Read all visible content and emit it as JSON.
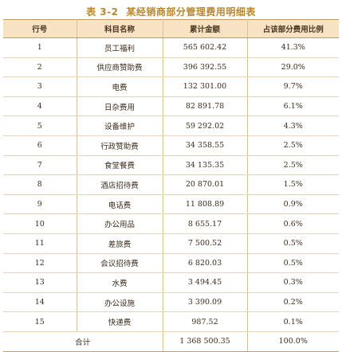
{
  "caption": {
    "number": "表 3-2",
    "title": "某经销商部分管理费用明细表"
  },
  "table": {
    "headers": [
      "行号",
      "科目名称",
      "累计金额",
      "占该部分费用比例"
    ],
    "rows": [
      [
        "1",
        "员工福利",
        "565 602.42",
        "41.3%"
      ],
      [
        "2",
        "供应商赞助费",
        "396 392.55",
        "29.0%"
      ],
      [
        "3",
        "电费",
        "132 301.00",
        "9.7%"
      ],
      [
        "4",
        "日杂费用",
        "82 891.78",
        "6.1%"
      ],
      [
        "5",
        "设备维护",
        "59 292.02",
        "4.3%"
      ],
      [
        "6",
        "行政赞助费",
        "34 358.55",
        "2.5%"
      ],
      [
        "7",
        "食堂餐费",
        "34 135.35",
        "2.5%"
      ],
      [
        "8",
        "酒店招待费",
        "20 870.01",
        "1.5%"
      ],
      [
        "9",
        "电话费",
        "11 808.89",
        "0.9%"
      ],
      [
        "10",
        "办公用品",
        "8 655.17",
        "0.6%"
      ],
      [
        "11",
        "差旅费",
        "7 500.52",
        "0.5%"
      ],
      [
        "12",
        "会议招待费",
        "6 820.03",
        "0.5%"
      ],
      [
        "13",
        "水费",
        "3 494.45",
        "0.3%"
      ],
      [
        "14",
        "办公设施",
        "3 390.09",
        "0.2%"
      ],
      [
        "15",
        "快递费",
        "987.52",
        "0.1%"
      ]
    ],
    "total": {
      "label": "合计",
      "amount": "1 368 500.35",
      "ratio": "100.0%"
    }
  },
  "colors": {
    "caption": "#b8862e",
    "header_bg": "#f7e2c3",
    "rule": "#c89b5a"
  }
}
